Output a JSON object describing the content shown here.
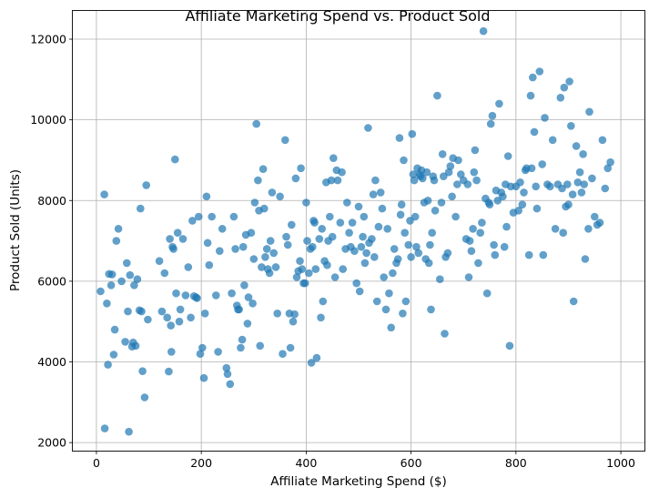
{
  "chart_data": {
    "type": "scatter",
    "title": "Affiliate Marketing Spend vs. Product Sold",
    "xlabel": "Affiliate Marketing Spend ($)",
    "ylabel": "Product Sold (Units)",
    "xlim": [
      -45,
      1045
    ],
    "ylim": [
      1800,
      12700
    ],
    "xticks": [
      0,
      200,
      400,
      600,
      800,
      1000
    ],
    "yticks": [
      2000,
      4000,
      6000,
      8000,
      10000,
      12000
    ],
    "xtick_labels": [
      "0",
      "200",
      "400",
      "600",
      "800",
      "1000"
    ],
    "ytick_labels": [
      "2000",
      "4000",
      "6000",
      "8000",
      "10000",
      "12000"
    ],
    "grid": true,
    "marker_color": "#1f77b4",
    "marker_alpha": 0.7,
    "points": [
      [
        8,
        5750
      ],
      [
        15,
        8150
      ],
      [
        16,
        2350
      ],
      [
        20,
        5450
      ],
      [
        22,
        3930
      ],
      [
        24,
        6180
      ],
      [
        28,
        5900
      ],
      [
        30,
        6170
      ],
      [
        33,
        4180
      ],
      [
        35,
        4800
      ],
      [
        38,
        7000
      ],
      [
        42,
        7300
      ],
      [
        48,
        6000
      ],
      [
        55,
        4500
      ],
      [
        58,
        6450
      ],
      [
        60,
        5250
      ],
      [
        62,
        2270
      ],
      [
        64,
        6150
      ],
      [
        68,
        4380
      ],
      [
        70,
        4480
      ],
      [
        72,
        5900
      ],
      [
        75,
        4400
      ],
      [
        78,
        6050
      ],
      [
        82,
        5280
      ],
      [
        84,
        7800
      ],
      [
        86,
        5250
      ],
      [
        88,
        3770
      ],
      [
        92,
        3120
      ],
      [
        95,
        8380
      ],
      [
        98,
        5050
      ],
      [
        120,
        6500
      ],
      [
        125,
        5250
      ],
      [
        130,
        6200
      ],
      [
        135,
        5100
      ],
      [
        138,
        3760
      ],
      [
        140,
        7050
      ],
      [
        142,
        4900
      ],
      [
        143,
        4250
      ],
      [
        145,
        6850
      ],
      [
        147,
        6800
      ],
      [
        150,
        9020
      ],
      [
        152,
        5700
      ],
      [
        155,
        7200
      ],
      [
        158,
        5000
      ],
      [
        160,
        5300
      ],
      [
        165,
        7050
      ],
      [
        170,
        5650
      ],
      [
        175,
        6350
      ],
      [
        180,
        5100
      ],
      [
        183,
        7500
      ],
      [
        186,
        5630
      ],
      [
        190,
        5600
      ],
      [
        192,
        5580
      ],
      [
        195,
        7600
      ],
      [
        198,
        4200
      ],
      [
        202,
        4350
      ],
      [
        205,
        3600
      ],
      [
        207,
        5200
      ],
      [
        210,
        8100
      ],
      [
        212,
        6950
      ],
      [
        215,
        6400
      ],
      [
        220,
        7600
      ],
      [
        228,
        5650
      ],
      [
        232,
        4250
      ],
      [
        235,
        6750
      ],
      [
        240,
        7300
      ],
      [
        248,
        3850
      ],
      [
        250,
        3700
      ],
      [
        255,
        3450
      ],
      [
        258,
        5700
      ],
      [
        262,
        7600
      ],
      [
        265,
        6800
      ],
      [
        268,
        5400
      ],
      [
        270,
        5300
      ],
      [
        272,
        5300
      ],
      [
        275,
        4350
      ],
      [
        278,
        4550
      ],
      [
        280,
        6850
      ],
      [
        282,
        5900
      ],
      [
        285,
        7150
      ],
      [
        288,
        4950
      ],
      [
        290,
        5600
      ],
      [
        295,
        7200
      ],
      [
        298,
        5450
      ],
      [
        300,
        6550
      ],
      [
        302,
        7950
      ],
      [
        305,
        9900
      ],
      [
        308,
        8500
      ],
      [
        310,
        7750
      ],
      [
        312,
        4400
      ],
      [
        315,
        6350
      ],
      [
        318,
        8780
      ],
      [
        320,
        7800
      ],
      [
        322,
        6600
      ],
      [
        325,
        6800
      ],
      [
        327,
        6300
      ],
      [
        330,
        6200
      ],
      [
        332,
        7000
      ],
      [
        335,
        8200
      ],
      [
        338,
        6700
      ],
      [
        342,
        6350
      ],
      [
        345,
        5200
      ],
      [
        350,
        8100
      ],
      [
        355,
        4200
      ],
      [
        360,
        9500
      ],
      [
        362,
        7100
      ],
      [
        365,
        6900
      ],
      [
        368,
        5200
      ],
      [
        370,
        4350
      ],
      [
        372,
        7400
      ],
      [
        375,
        5000
      ],
      [
        378,
        5180
      ],
      [
        380,
        8550
      ],
      [
        382,
        6100
      ],
      [
        385,
        6250
      ],
      [
        388,
        6500
      ],
      [
        390,
        8800
      ],
      [
        392,
        6300
      ],
      [
        395,
        5950
      ],
      [
        398,
        5950
      ],
      [
        400,
        7950
      ],
      [
        402,
        7000
      ],
      [
        405,
        6200
      ],
      [
        408,
        6800
      ],
      [
        410,
        3980
      ],
      [
        412,
        6850
      ],
      [
        414,
        7500
      ],
      [
        416,
        7450
      ],
      [
        418,
        6300
      ],
      [
        420,
        4100
      ],
      [
        425,
        7050
      ],
      [
        428,
        5100
      ],
      [
        430,
        7300
      ],
      [
        432,
        5500
      ],
      [
        435,
        6500
      ],
      [
        438,
        8450
      ],
      [
        440,
        6400
      ],
      [
        442,
        7000
      ],
      [
        445,
        7600
      ],
      [
        448,
        8500
      ],
      [
        450,
        7100
      ],
      [
        452,
        9050
      ],
      [
        455,
        6100
      ],
      [
        458,
        8750
      ],
      [
        460,
        8500
      ],
      [
        465,
        7450
      ],
      [
        468,
        8700
      ],
      [
        470,
        6300
      ],
      [
        475,
        6800
      ],
      [
        478,
        7950
      ],
      [
        482,
        7200
      ],
      [
        485,
        6850
      ],
      [
        488,
        7450
      ],
      [
        492,
        6750
      ],
      [
        496,
        5950
      ],
      [
        500,
        7850
      ],
      [
        502,
        5750
      ],
      [
        505,
        6850
      ],
      [
        508,
        7100
      ],
      [
        510,
        7600
      ],
      [
        512,
        6450
      ],
      [
        515,
        6700
      ],
      [
        518,
        9800
      ],
      [
        520,
        6950
      ],
      [
        525,
        7050
      ],
      [
        528,
        8150
      ],
      [
        530,
        6600
      ],
      [
        532,
        8500
      ],
      [
        535,
        5500
      ],
      [
        538,
        7350
      ],
      [
        542,
        8200
      ],
      [
        545,
        7800
      ],
      [
        548,
        6100
      ],
      [
        552,
        5300
      ],
      [
        555,
        7300
      ],
      [
        558,
        5700
      ],
      [
        562,
        4850
      ],
      [
        565,
        6200
      ],
      [
        568,
        6800
      ],
      [
        572,
        6450
      ],
      [
        575,
        6550
      ],
      [
        578,
        9550
      ],
      [
        580,
        7650
      ],
      [
        582,
        7900
      ],
      [
        584,
        5200
      ],
      [
        586,
        9000
      ],
      [
        588,
        7200
      ],
      [
        590,
        5500
      ],
      [
        595,
        6900
      ],
      [
        598,
        7500
      ],
      [
        600,
        6600
      ],
      [
        602,
        9650
      ],
      [
        604,
        8650
      ],
      [
        606,
        8500
      ],
      [
        608,
        7600
      ],
      [
        610,
        6850
      ],
      [
        612,
        8800
      ],
      [
        614,
        6700
      ],
      [
        616,
        8650
      ],
      [
        618,
        8600
      ],
      [
        620,
        8750
      ],
      [
        622,
        8550
      ],
      [
        625,
        7950
      ],
      [
        628,
        6550
      ],
      [
        630,
        8700
      ],
      [
        632,
        8000
      ],
      [
        634,
        6450
      ],
      [
        636,
        6900
      ],
      [
        638,
        5300
      ],
      [
        640,
        7200
      ],
      [
        642,
        8600
      ],
      [
        644,
        8500
      ],
      [
        646,
        7750
      ],
      [
        650,
        10600
      ],
      [
        655,
        6050
      ],
      [
        658,
        7950
      ],
      [
        660,
        9150
      ],
      [
        662,
        8600
      ],
      [
        664,
        4700
      ],
      [
        666,
        6600
      ],
      [
        670,
        6700
      ],
      [
        672,
        8700
      ],
      [
        675,
        8850
      ],
      [
        678,
        8100
      ],
      [
        680,
        9050
      ],
      [
        685,
        7600
      ],
      [
        688,
        8400
      ],
      [
        690,
        9000
      ],
      [
        695,
        8650
      ],
      [
        700,
        8500
      ],
      [
        705,
        7050
      ],
      [
        708,
        8400
      ],
      [
        710,
        6100
      ],
      [
        712,
        7000
      ],
      [
        715,
        6750
      ],
      [
        718,
        7300
      ],
      [
        720,
        8700
      ],
      [
        722,
        9250
      ],
      [
        725,
        8500
      ],
      [
        728,
        6450
      ],
      [
        732,
        7200
      ],
      [
        735,
        7450
      ],
      [
        738,
        12200
      ],
      [
        742,
        8050
      ],
      [
        745,
        5700
      ],
      [
        748,
        7950
      ],
      [
        750,
        7900
      ],
      [
        752,
        9900
      ],
      [
        755,
        10100
      ],
      [
        758,
        6900
      ],
      [
        760,
        6650
      ],
      [
        762,
        8250
      ],
      [
        765,
        8000
      ],
      [
        768,
        10400
      ],
      [
        772,
        8200
      ],
      [
        775,
        8100
      ],
      [
        778,
        6850
      ],
      [
        780,
        8400
      ],
      [
        782,
        7350
      ],
      [
        785,
        9100
      ],
      [
        788,
        4400
      ],
      [
        790,
        8350
      ],
      [
        795,
        7700
      ],
      [
        800,
        8350
      ],
      [
        805,
        7750
      ],
      [
        808,
        8450
      ],
      [
        812,
        7900
      ],
      [
        815,
        8200
      ],
      [
        818,
        8750
      ],
      [
        820,
        8800
      ],
      [
        825,
        6650
      ],
      [
        828,
        10600
      ],
      [
        830,
        8800
      ],
      [
        832,
        11050
      ],
      [
        835,
        9700
      ],
      [
        838,
        8350
      ],
      [
        840,
        7800
      ],
      [
        845,
        11200
      ],
      [
        850,
        8900
      ],
      [
        852,
        6650
      ],
      [
        855,
        10050
      ],
      [
        860,
        8400
      ],
      [
        865,
        8350
      ],
      [
        870,
        9500
      ],
      [
        875,
        7300
      ],
      [
        880,
        8400
      ],
      [
        885,
        10550
      ],
      [
        888,
        8300
      ],
      [
        890,
        7200
      ],
      [
        892,
        10800
      ],
      [
        895,
        7850
      ],
      [
        898,
        8400
      ],
      [
        900,
        7900
      ],
      [
        902,
        10950
      ],
      [
        905,
        9850
      ],
      [
        908,
        8150
      ],
      [
        910,
        5500
      ],
      [
        915,
        9350
      ],
      [
        918,
        8450
      ],
      [
        922,
        8700
      ],
      [
        925,
        8200
      ],
      [
        928,
        9150
      ],
      [
        930,
        8400
      ],
      [
        932,
        6550
      ],
      [
        938,
        7300
      ],
      [
        940,
        10200
      ],
      [
        945,
        8550
      ],
      [
        950,
        7600
      ],
      [
        955,
        7400
      ],
      [
        960,
        7450
      ],
      [
        965,
        9500
      ],
      [
        970,
        8300
      ],
      [
        975,
        8800
      ],
      [
        980,
        8950
      ]
    ]
  }
}
